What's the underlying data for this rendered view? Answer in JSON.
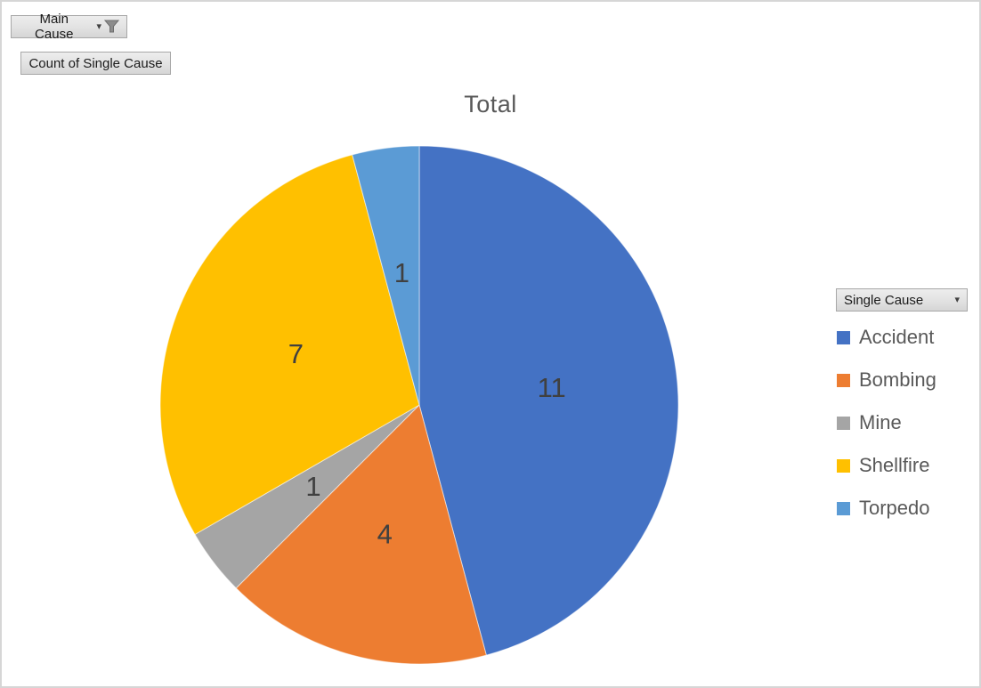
{
  "field_buttons": {
    "main_cause_label": "Main Cause",
    "count_label": "Count of Single Cause"
  },
  "legend_button_label": "Single Cause",
  "chart_data": {
    "type": "pie",
    "title": "Total",
    "categories": [
      "Accident",
      "Bombing",
      "Mine",
      "Shellfire",
      "Torpedo"
    ],
    "values": [
      11,
      4,
      1,
      7,
      1
    ],
    "total": 24,
    "colors": [
      "#4472C4",
      "#ED7D31",
      "#A5A5A5",
      "#FFC000",
      "#5B9BD5"
    ],
    "start_angle_deg": 0,
    "direction": "clockwise",
    "show_data_labels": true,
    "legend_position": "right",
    "title_color": "#595959",
    "label_color": "#404040",
    "legend_text_color": "#595959"
  }
}
